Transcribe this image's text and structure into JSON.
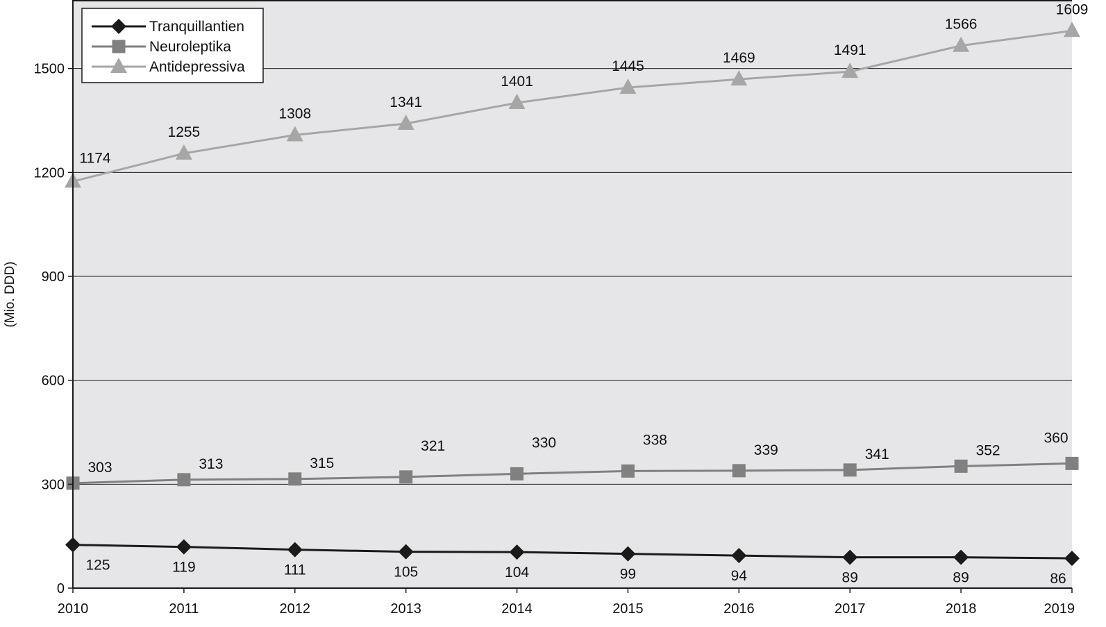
{
  "chart_data": {
    "type": "line",
    "categories": [
      "2010",
      "2011",
      "2012",
      "2013",
      "2014",
      "2015",
      "2016",
      "2017",
      "2018",
      "2019"
    ],
    "ylabel": "(Mio. DDD)",
    "ylim": [
      0,
      1700
    ],
    "yticks": [
      0,
      300,
      600,
      900,
      1200,
      1500
    ],
    "grid": true,
    "legend_position": "top-left",
    "background": "#e6e6e8",
    "series": [
      {
        "name": "Tranquillantien",
        "marker": "diamond",
        "color": "#1a1a1a",
        "values": [
          125,
          119,
          111,
          105,
          104,
          99,
          94,
          89,
          89,
          86
        ]
      },
      {
        "name": "Neuroleptika",
        "marker": "square",
        "color": "#808080",
        "values": [
          303,
          313,
          315,
          321,
          330,
          338,
          339,
          341,
          352,
          360
        ]
      },
      {
        "name": "Antidepressiva",
        "marker": "triangle",
        "color": "#a6a6a6",
        "values": [
          1174,
          1255,
          1308,
          1341,
          1401,
          1445,
          1469,
          1491,
          1566,
          1609
        ]
      }
    ]
  }
}
